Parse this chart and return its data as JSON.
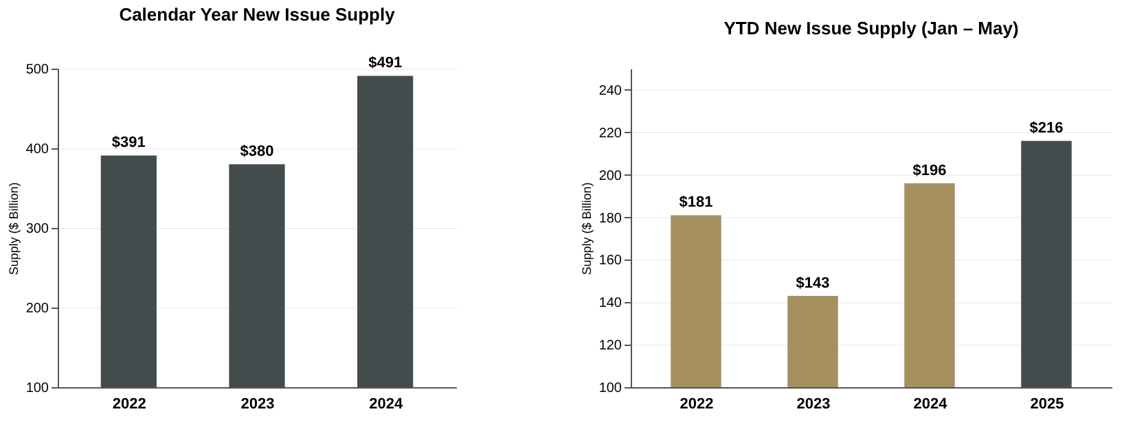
{
  "chart_data": [
    {
      "type": "bar",
      "title": "Calendar Year New Issue Supply",
      "ylabel": "Supply ($ Billion)",
      "categories": [
        "2022",
        "2023",
        "2024"
      ],
      "values": [
        391,
        380,
        491
      ],
      "colors": [
        "#434c4c",
        "#434c4c",
        "#434c4c"
      ],
      "value_labels": [
        "$391",
        "$380",
        "$491"
      ],
      "ylim": [
        100,
        500
      ],
      "yticks": [
        100,
        200,
        300,
        400,
        500
      ],
      "grid": "y"
    },
    {
      "type": "bar",
      "title": "YTD New Issue Supply (Jan – May)",
      "ylabel": "Supply ($ Billion)",
      "categories": [
        "2022",
        "2023",
        "2024",
        "2025"
      ],
      "values": [
        181,
        143,
        196,
        216
      ],
      "colors": [
        "#a69060",
        "#a69060",
        "#a69060",
        "#434c4c"
      ],
      "value_labels": [
        "$181",
        "$143",
        "$196",
        "$216"
      ],
      "ylim": [
        100,
        250
      ],
      "yticks": [
        100,
        120,
        140,
        160,
        180,
        200,
        220,
        240
      ],
      "grid": "y"
    }
  ]
}
